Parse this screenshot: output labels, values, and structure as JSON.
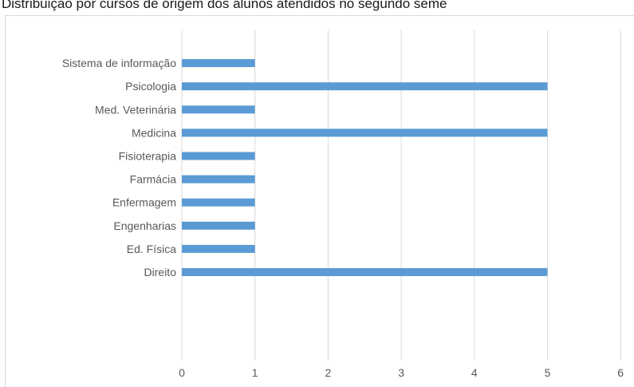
{
  "header": {
    "caption": "Distribuição por cursos de origem dos alunos atendidos no segundo seme"
  },
  "colors": {
    "bar": "#5b9bd5",
    "grid": "#d9d9d9",
    "text": "#595959"
  },
  "chart_data": {
    "type": "bar",
    "orientation": "horizontal",
    "title": "Distribuição por cursos de origem dos alunos atendidos no segundo seme",
    "categories": [
      "Direito",
      "Ed. Física",
      "Engenharias",
      "Enfermagem",
      "Farmácia",
      "Fisioterapia",
      "Medicina",
      "Med. Veterinária",
      "Psicologia",
      "Sistema de informação"
    ],
    "values": [
      5,
      1,
      1,
      1,
      1,
      1,
      5,
      1,
      5,
      1
    ],
    "xlim": [
      0,
      6
    ],
    "xticks": [
      "0",
      "1",
      "2",
      "3",
      "4",
      "5",
      "6"
    ],
    "grid": "vertical",
    "legend": "none",
    "xlabel": "",
    "ylabel": ""
  }
}
